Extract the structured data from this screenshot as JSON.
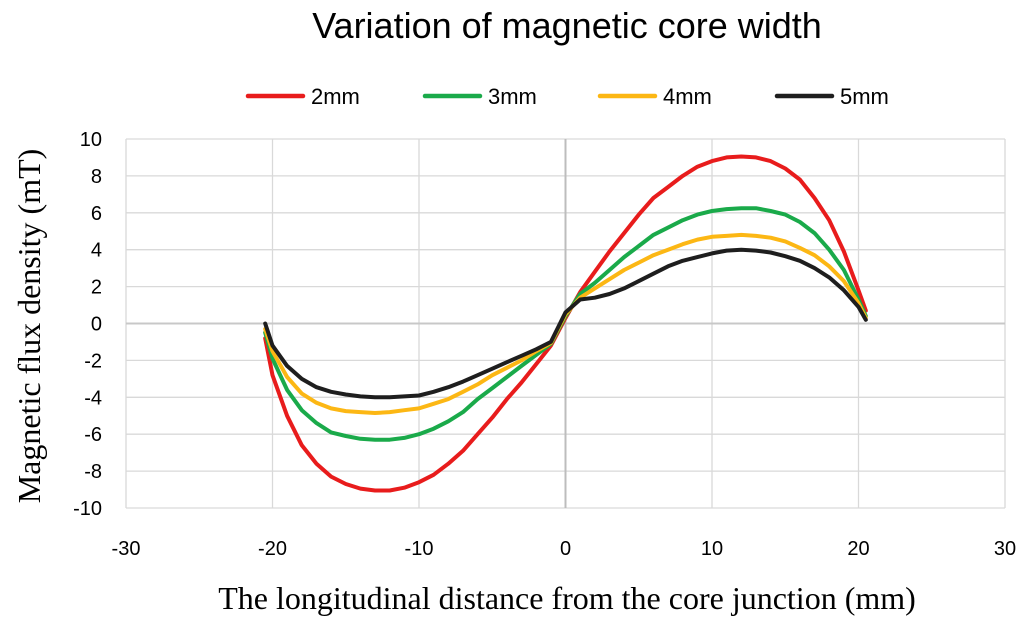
{
  "chart_data": {
    "type": "line",
    "title": "Variation of magnetic core width",
    "xlabel": "The longitudinal distance from the core junction (mm)",
    "ylabel": "Magnetic flux density (mT)",
    "xlim": [
      -30,
      30
    ],
    "ylim": [
      -10,
      10
    ],
    "xticks": [
      -30,
      -20,
      -10,
      0,
      10,
      20,
      30
    ],
    "yticks": [
      -10,
      -8,
      -6,
      -4,
      -2,
      0,
      2,
      4,
      6,
      8,
      10
    ],
    "grid": true,
    "legend_position": "top",
    "series": [
      {
        "name": "2mm",
        "color": "#e81c1c",
        "x": [
          -20.5,
          -20,
          -19,
          -18,
          -17,
          -16,
          -15,
          -14,
          -13,
          -12,
          -11,
          -10,
          -9,
          -8,
          -7,
          -6,
          -5,
          -4,
          -3,
          -2,
          -1,
          0,
          1,
          2,
          3,
          4,
          5,
          6,
          7,
          8,
          9,
          10,
          11,
          12,
          13,
          14,
          15,
          16,
          17,
          18,
          19,
          20,
          20.5
        ],
        "y": [
          -0.8,
          -2.8,
          -5.0,
          -6.6,
          -7.6,
          -8.3,
          -8.7,
          -8.95,
          -9.05,
          -9.05,
          -8.9,
          -8.6,
          -8.2,
          -7.6,
          -6.9,
          -6.0,
          -5.1,
          -4.1,
          -3.2,
          -2.2,
          -1.2,
          0.3,
          1.7,
          2.8,
          3.9,
          4.9,
          5.9,
          6.8,
          7.4,
          8.0,
          8.5,
          8.8,
          9.0,
          9.05,
          9.0,
          8.8,
          8.4,
          7.8,
          6.8,
          5.6,
          3.9,
          1.8,
          0.7
        ]
      },
      {
        "name": "3mm",
        "color": "#1aaa4a",
        "x": [
          -20.5,
          -20,
          -19,
          -18,
          -17,
          -16,
          -15,
          -14,
          -13,
          -12,
          -11,
          -10,
          -9,
          -8,
          -7,
          -6,
          -5,
          -4,
          -3,
          -2,
          -1,
          0,
          1,
          2,
          3,
          4,
          5,
          6,
          7,
          8,
          9,
          10,
          11,
          12,
          13,
          14,
          15,
          16,
          17,
          18,
          19,
          20,
          20.5
        ],
        "y": [
          -0.5,
          -1.9,
          -3.6,
          -4.7,
          -5.4,
          -5.9,
          -6.1,
          -6.25,
          -6.3,
          -6.3,
          -6.2,
          -6.0,
          -5.7,
          -5.3,
          -4.8,
          -4.1,
          -3.5,
          -2.9,
          -2.3,
          -1.7,
          -1.1,
          0.4,
          1.6,
          2.2,
          2.9,
          3.6,
          4.2,
          4.8,
          5.2,
          5.6,
          5.9,
          6.1,
          6.2,
          6.25,
          6.25,
          6.1,
          5.9,
          5.5,
          4.9,
          4.0,
          2.9,
          1.3,
          0.4
        ]
      },
      {
        "name": "4mm",
        "color": "#fcb714",
        "x": [
          -20.5,
          -20,
          -19,
          -18,
          -17,
          -16,
          -15,
          -14,
          -13,
          -12,
          -11,
          -10,
          -9,
          -8,
          -7,
          -6,
          -5,
          -4,
          -3,
          -2,
          -1,
          0,
          1,
          2,
          3,
          4,
          5,
          6,
          7,
          8,
          9,
          10,
          11,
          12,
          13,
          14,
          15,
          16,
          17,
          18,
          19,
          20,
          20.5
        ],
        "y": [
          -0.3,
          -1.5,
          -2.9,
          -3.8,
          -4.3,
          -4.6,
          -4.75,
          -4.8,
          -4.85,
          -4.8,
          -4.7,
          -4.6,
          -4.35,
          -4.1,
          -3.7,
          -3.3,
          -2.8,
          -2.4,
          -2.0,
          -1.5,
          -1.05,
          0.5,
          1.4,
          1.9,
          2.4,
          2.9,
          3.3,
          3.7,
          4.0,
          4.3,
          4.55,
          4.7,
          4.75,
          4.8,
          4.75,
          4.65,
          4.45,
          4.1,
          3.7,
          3.1,
          2.3,
          1.1,
          0.3
        ]
      },
      {
        "name": "5mm",
        "color": "#1e1e1e",
        "x": [
          -20.5,
          -20,
          -19,
          -18,
          -17,
          -16,
          -15,
          -14,
          -13,
          -12,
          -11,
          -10,
          -9,
          -8,
          -7,
          -6,
          -5,
          -4,
          -3,
          -2,
          -1,
          0,
          1,
          2,
          3,
          4,
          5,
          6,
          7,
          8,
          9,
          10,
          11,
          12,
          13,
          14,
          15,
          16,
          17,
          18,
          19,
          20,
          20.5
        ],
        "y": [
          0.0,
          -1.2,
          -2.3,
          -3.0,
          -3.45,
          -3.7,
          -3.85,
          -3.95,
          -4.0,
          -4.0,
          -3.95,
          -3.9,
          -3.7,
          -3.45,
          -3.15,
          -2.8,
          -2.45,
          -2.1,
          -1.75,
          -1.4,
          -1.0,
          0.6,
          1.3,
          1.4,
          1.6,
          1.9,
          2.3,
          2.7,
          3.1,
          3.4,
          3.6,
          3.8,
          3.95,
          4.0,
          3.95,
          3.85,
          3.65,
          3.4,
          3.0,
          2.5,
          1.8,
          0.9,
          0.2
        ]
      }
    ]
  }
}
